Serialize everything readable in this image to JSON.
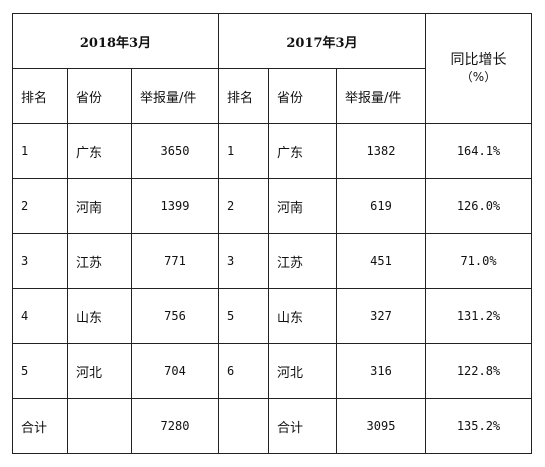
{
  "header": {
    "period_2018": "2018年3月",
    "period_2017": "2017年3月",
    "growth_title": "同比增长",
    "growth_unit": "（%）"
  },
  "columns": {
    "rank": "排名",
    "province": "省份",
    "reports": "举报量/件"
  },
  "rows": [
    {
      "rank18": "1",
      "prov18": "广东",
      "cnt18": "3650",
      "rank17": "1",
      "prov17": "广东",
      "cnt17": "1382",
      "growth": "164.1%"
    },
    {
      "rank18": "2",
      "prov18": "河南",
      "cnt18": "1399",
      "rank17": "2",
      "prov17": "河南",
      "cnt17": "619",
      "growth": "126.0%"
    },
    {
      "rank18": "3",
      "prov18": "江苏",
      "cnt18": "771",
      "rank17": "3",
      "prov17": "江苏",
      "cnt17": "451",
      "growth": "71.0%"
    },
    {
      "rank18": "4",
      "prov18": "山东",
      "cnt18": "756",
      "rank17": "5",
      "prov17": "山东",
      "cnt17": "327",
      "growth": "131.2%"
    },
    {
      "rank18": "5",
      "prov18": "河北",
      "cnt18": "704",
      "rank17": "6",
      "prov17": "河北",
      "cnt17": "316",
      "growth": "122.8%"
    }
  ],
  "total": {
    "label_2018": "合计",
    "cnt18": "7280",
    "label_2017": "合计",
    "cnt17": "3095",
    "growth": "135.2%"
  }
}
